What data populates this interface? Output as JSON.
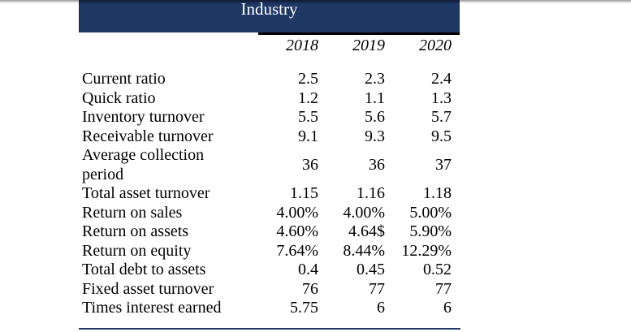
{
  "header": {
    "band_title": "Industry"
  },
  "colors": {
    "band_navy": "#1f3864",
    "top_rule_black": "#000000",
    "bottom_rule_navy": "#1f3864"
  },
  "table": {
    "year_columns": [
      "2018",
      "2019",
      "2020"
    ],
    "rows": [
      {
        "label": "Current ratio",
        "values": [
          "2.5",
          "2.3",
          "2.4"
        ]
      },
      {
        "label": "Quick ratio",
        "values": [
          "1.2",
          "1.1",
          "1.3"
        ]
      },
      {
        "label": "Inventory turnover",
        "values": [
          "5.5",
          "5.6",
          "5.7"
        ]
      },
      {
        "label": "Receivable turnover",
        "values": [
          "9.1",
          "9.3",
          "9.5"
        ]
      },
      {
        "label": "Average collection period",
        "values": [
          "36",
          "36",
          "37"
        ]
      },
      {
        "label": "Total asset turnover",
        "values": [
          "1.15",
          "1.16",
          "1.18"
        ]
      },
      {
        "label": "Return on sales",
        "values": [
          "4.00%",
          "4.00%",
          "5.00%"
        ]
      },
      {
        "label": "Return on assets",
        "values": [
          "4.60%",
          "4.64$",
          "5.90%"
        ]
      },
      {
        "label": "Return on equity",
        "values": [
          "7.64%",
          "8.44%",
          "12.29%"
        ]
      },
      {
        "label": "Total debt to assets",
        "values": [
          "0.4",
          "0.45",
          "0.52"
        ]
      },
      {
        "label": "Fixed asset turnover",
        "values": [
          "76",
          "77",
          "77"
        ]
      },
      {
        "label": "Times interest earned",
        "values": [
          "5.75",
          "6",
          "6"
        ]
      }
    ]
  }
}
